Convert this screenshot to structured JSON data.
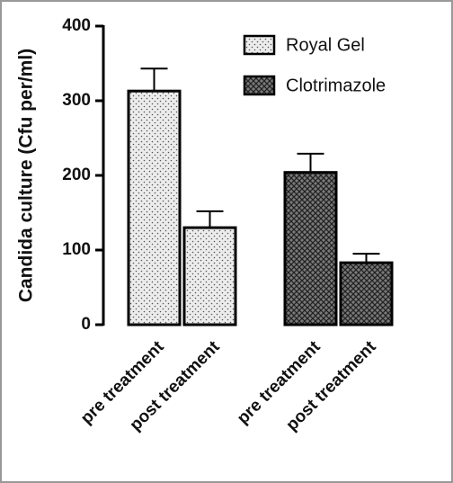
{
  "chart_data": {
    "type": "bar",
    "y_label": "Candida culture (Cfu per/ml)",
    "categories": [
      "pre treatment",
      "post treatment"
    ],
    "series": [
      {
        "name": "Royal Gel",
        "color": "#ececec",
        "pattern": "dots",
        "values": [
          313,
          130
        ],
        "errors": [
          30,
          22
        ]
      },
      {
        "name": "Clotrimazole",
        "color": "#7a7a7a",
        "pattern": "checker",
        "values": [
          204,
          83
        ],
        "errors": [
          25,
          12
        ]
      }
    ],
    "ylim": [
      0,
      400
    ],
    "yticks": [
      0,
      100,
      200,
      300,
      400
    ]
  }
}
